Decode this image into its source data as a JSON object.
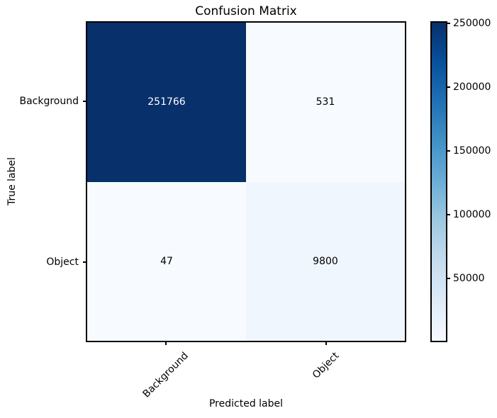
{
  "chart_data": {
    "type": "heatmap",
    "title": "Confusion Matrix",
    "xlabel": "Predicted label",
    "ylabel": "True label",
    "x_categories": [
      "Background",
      "Object"
    ],
    "y_categories": [
      "Background",
      "Object"
    ],
    "matrix": [
      [
        251766,
        531
      ],
      [
        47,
        9800
      ]
    ],
    "vmin": 47,
    "vmax": 251766,
    "colormap": "Blues",
    "colormap_stops": [
      "#f7fbff",
      "#deebf7",
      "#c6dbef",
      "#9ecae1",
      "#6baed6",
      "#4292c6",
      "#2171b5",
      "#08519c",
      "#08306b"
    ],
    "cell_text_color_high": "#ffffff",
    "cell_text_color_low": "#000000",
    "colorbar_ticks": [
      50000,
      100000,
      150000,
      200000,
      250000
    ],
    "legend_position": "right-colorbar",
    "grid": false,
    "xtick_rotation_deg": 45,
    "axis_color": "#000000",
    "background_color": "#ffffff"
  }
}
